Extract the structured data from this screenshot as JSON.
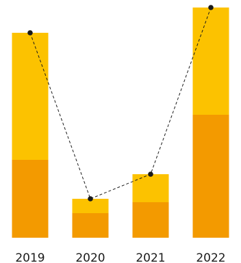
{
  "chart_data": {
    "type": "bar",
    "stacked": true,
    "categories": [
      "2019",
      "2020",
      "2021",
      "2022"
    ],
    "series": [
      {
        "values": [
          114,
          36,
          52,
          180
        ],
        "color": "#f39a00"
      },
      {
        "values": [
          186,
          21,
          41,
          157
        ],
        "color": "#fcc200"
      }
    ],
    "line": {
      "values": [
        300,
        57,
        93,
        337
      ],
      "color": "#1a1a1a",
      "style": "dashed",
      "markers": "circle"
    },
    "ylim": [
      0,
      340
    ],
    "grid": false,
    "legend": "none",
    "title": "",
    "xlabel": "",
    "ylabel": ""
  }
}
